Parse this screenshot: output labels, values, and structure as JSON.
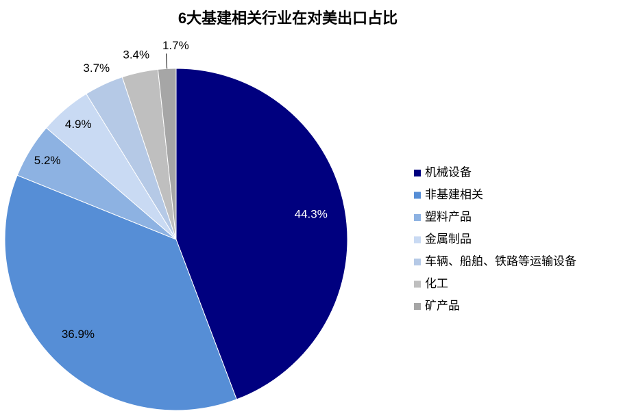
{
  "chart_data": {
    "type": "pie",
    "title": "6大基建相关行业在对美出口占比",
    "categories": [
      "机械设备",
      "非基建相关",
      "塑料产品",
      "金属制品",
      "车辆、船舶、铁路等运输设备",
      "化工",
      "矿产品"
    ],
    "values": [
      44.3,
      36.9,
      5.2,
      4.9,
      3.7,
      3.4,
      1.7
    ],
    "value_labels": [
      "44.3%",
      "36.9%",
      "5.2%",
      "4.9%",
      "3.7%",
      "3.4%",
      "1.7%"
    ],
    "colors": [
      "#00007f",
      "#568ed6",
      "#8db2e2",
      "#c9daf3",
      "#b5c9e6",
      "#bfbfbf",
      "#a6a6a6"
    ],
    "legend": "right"
  }
}
